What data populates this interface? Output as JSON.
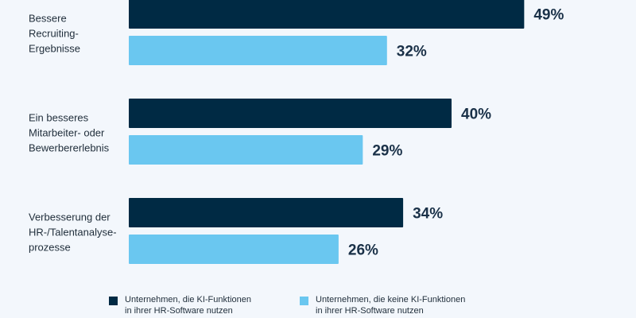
{
  "colors": {
    "background": "#f3f7fc",
    "series_with_ai": "#002a44",
    "series_without_ai": "#6ac7f0"
  },
  "chart_data": {
    "type": "bar",
    "orientation": "horizontal",
    "value_unit": "%",
    "categories": [
      [
        "Bessere",
        "Recruiting-",
        "Ergebnisse"
      ],
      [
        "Ein besseres",
        "Mitarbeiter- oder",
        "Bewerbererlebnis"
      ],
      [
        "Verbesserung der",
        "HR-/Talentanalyse-",
        "prozesse"
      ]
    ],
    "series": [
      {
        "name": "Unternehmen, die KI-Funktionen in ihrer HR-Software nutzen",
        "legend_lines": [
          "Unternehmen, die KI-Funktionen",
          "in ihrer HR-Software nutzen"
        ],
        "color": "#002a44",
        "values": [
          49,
          40,
          34
        ]
      },
      {
        "name": "Unternehmen, die keine KI-Funktionen in ihrer HR-Software nutzen",
        "legend_lines": [
          "Unternehmen, die keine KI-Funktionen",
          "in ihrer HR-Software nutzen"
        ],
        "color": "#6ac7f0",
        "values": [
          32,
          29,
          26
        ]
      }
    ],
    "xlim": [
      0,
      100
    ],
    "grid": false,
    "legend_position": "bottom"
  }
}
